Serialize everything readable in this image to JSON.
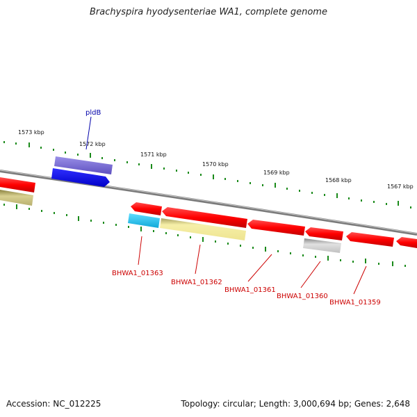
{
  "title": "Brachyspira hyodysenteriae WA1, complete genome",
  "accession": "Accession: NC_012225",
  "summary": "Topology: circular; Length: 3,000,694 bp; Genes: 2,648",
  "kbp_labels": [
    "1573 kbp",
    "1572 kbp",
    "1571 kbp",
    "1570 kbp",
    "1569 kbp",
    "1568 kbp",
    "1567 kbp"
  ],
  "gene_labels": {
    "pldB": "pldB",
    "g1363": "BHWA1_01363",
    "g1362": "BHWA1_01362",
    "g1361": "BHWA1_01361",
    "g1360": "BHWA1_01360",
    "g1359": "BHWA1_01359"
  },
  "colors": {
    "red": "#ff0000",
    "dark_red": "#cc0000",
    "blue": "#0000ee",
    "purple": "#7a6ed6",
    "cyan": "#22c8f0",
    "yellow": "#f4ec9e",
    "olive": "#b8b070",
    "grey": "#bdbdbd",
    "tick": "#1a8a1a",
    "backbone": "#7a7a7a"
  }
}
